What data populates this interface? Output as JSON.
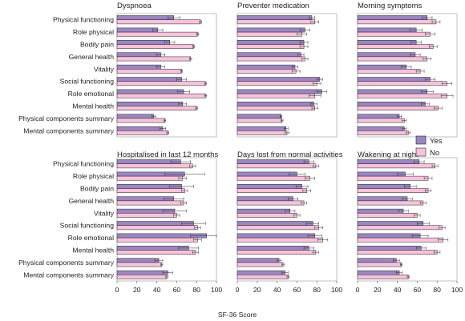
{
  "colors": {
    "yes": "#9b86c2",
    "no": "#f7c3dc",
    "border": "#222222"
  },
  "legend": {
    "yes": "Yes",
    "no": "No"
  },
  "xlabel": "SF-36 Score",
  "chart_data": {
    "type": "bar",
    "orientation": "horizontal",
    "xlabel": "SF-36 Score",
    "xlim": [
      0,
      100
    ],
    "xticks": [
      "0",
      "20",
      "40",
      "60",
      "80",
      "100"
    ],
    "categories": [
      "Physical functioning",
      "Role physical",
      "Bodily pain",
      "General health",
      "Vitality",
      "Social functioning",
      "Role emotional",
      "Mental health",
      "Physical components summary",
      "Mental components summary"
    ],
    "legend_position": "right",
    "panels": [
      {
        "title": "Dyspnoea",
        "series": [
          {
            "name": "Yes",
            "values": [
              57,
              41,
              53,
              44,
              44,
              65,
              67,
              66,
              37,
              46
            ],
            "errors": [
              6,
              5,
              5,
              4,
              4,
              5,
              6,
              4,
              2,
              3
            ]
          },
          {
            "name": "No",
            "values": [
              84,
              81,
              77,
              74,
              65,
              89,
              89,
              80,
              48,
              51
            ],
            "errors": [
              1,
              1,
              1,
              1,
              1,
              1,
              1,
              1,
              1,
              1
            ]
          }
        ]
      },
      {
        "title": "Preventer medication",
        "series": [
          {
            "name": "Yes",
            "values": [
              75,
              68,
              67,
              64,
              58,
              83,
              85,
              77,
              44,
              49
            ],
            "errors": [
              3,
              5,
              4,
              3,
              3,
              3,
              5,
              3,
              1,
              2
            ]
          },
          {
            "name": "No",
            "values": [
              78,
              65,
              67,
              68,
              59,
              80,
              78,
              78,
              45,
              50
            ],
            "errors": [
              4,
              5,
              4,
              3,
              4,
              4,
              6,
              3,
              1,
              2
            ]
          }
        ]
      },
      {
        "title": "Morning symptoms",
        "series": [
          {
            "name": "Yes",
            "values": [
              70,
              59,
              59,
              58,
              49,
              73,
              70,
              68,
              42,
              47
            ],
            "errors": [
              5,
              6,
              5,
              5,
              5,
              5,
              6,
              4,
              2,
              2
            ]
          },
          {
            "name": "No",
            "values": [
              79,
              73,
              76,
              70,
              63,
              90,
              90,
              81,
              47,
              51
            ],
            "errors": [
              4,
              5,
              4,
              4,
              4,
              5,
              6,
              4,
              2,
              2
            ]
          }
        ]
      },
      {
        "title": "Hospitalised in last 12 months",
        "series": [
          {
            "name": "Yes",
            "values": [
              64,
              68,
              65,
              57,
              58,
              77,
              90,
              72,
              42,
              51
            ],
            "errors": [
              10,
              20,
              12,
              10,
              12,
              12,
              16,
              10,
              4,
              5
            ]
          },
          {
            "name": "No",
            "values": [
              76,
              66,
              68,
              67,
              60,
              81,
              81,
              79,
              45,
              50
            ],
            "errors": [
              3,
              4,
              3,
              3,
              3,
              3,
              4,
              3,
              1,
              1
            ]
          }
        ]
      },
      {
        "title": "Days lost from normal activities",
        "series": [
          {
            "name": "Yes",
            "values": [
              72,
              60,
              65,
              56,
              53,
              76,
              78,
              72,
              42,
              48
            ],
            "errors": [
              5,
              8,
              6,
              5,
              5,
              6,
              7,
              5,
              2,
              3
            ]
          },
          {
            "name": "No",
            "values": [
              79,
              73,
              70,
              67,
              60,
              82,
              86,
              79,
              46,
              51
            ],
            "errors": [
              3,
              5,
              4,
              3,
              3,
              4,
              5,
              3,
              1,
              1
            ]
          }
        ]
      },
      {
        "title": "Wakening at night",
        "series": [
          {
            "name": "Yes",
            "values": [
              62,
              48,
              53,
              50,
              46,
              66,
              63,
              64,
              39,
              42
            ],
            "errors": [
              5,
              8,
              6,
              5,
              5,
              6,
              8,
              5,
              3,
              3
            ]
          },
          {
            "name": "No",
            "values": [
              78,
              71,
              71,
              66,
              60,
              85,
              86,
              80,
              44,
              51
            ],
            "errors": [
              3,
              4,
              3,
              3,
              3,
              3,
              5,
              3,
              1,
              1
            ]
          }
        ]
      }
    ]
  }
}
